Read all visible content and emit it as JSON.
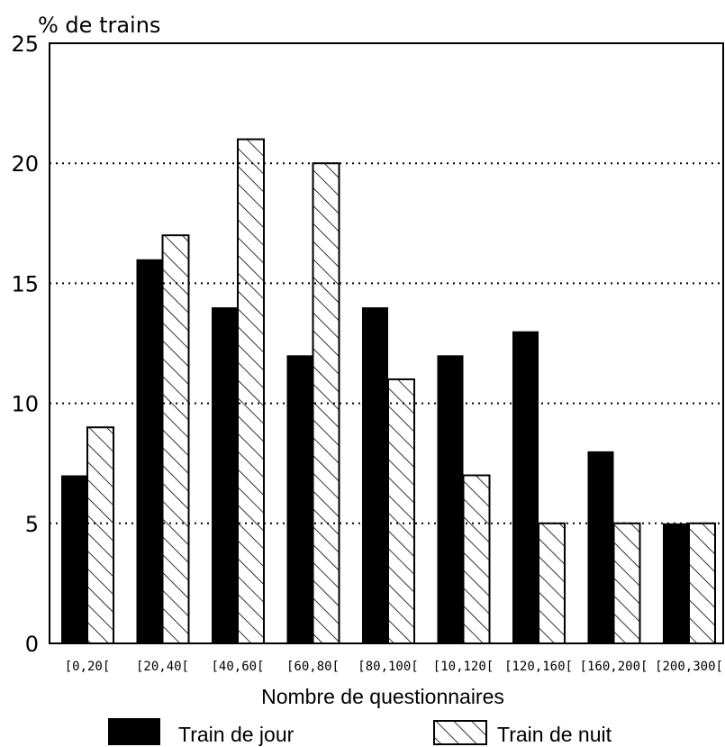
{
  "chart_data": {
    "type": "bar",
    "title": "",
    "ylabel": "% de trains",
    "xlabel": "Nombre de questionnaires",
    "ylim": [
      0,
      25
    ],
    "yticks": [
      0,
      5,
      10,
      15,
      20,
      25
    ],
    "grid": "horizontal-dotted",
    "categories": [
      "[0,20[",
      "[20,40[",
      "[40,60[",
      "[60,80[",
      "[80,100[",
      "[10,120[",
      "[120,160[",
      "[160,200[",
      "[200,300["
    ],
    "series": [
      {
        "name": "Train de jour",
        "fill": "#000000",
        "values": [
          7,
          16,
          14,
          12,
          14,
          12,
          13,
          8,
          5
        ]
      },
      {
        "name": "Train de nuit",
        "fill": "hatch",
        "values": [
          9,
          17,
          21,
          20,
          11,
          7,
          5,
          5,
          5
        ]
      }
    ],
    "legend_position": "bottom"
  }
}
